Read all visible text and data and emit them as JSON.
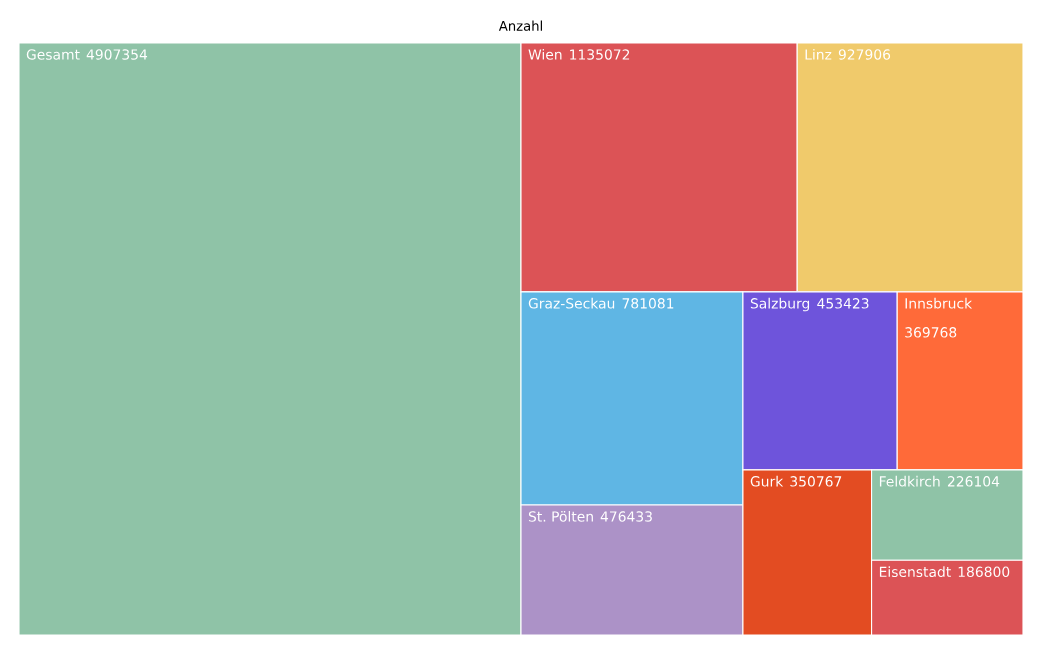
{
  "chart_data": {
    "type": "other",
    "title": "Anzahl",
    "categories": [
      "Gesamt",
      "Wien",
      "Linz",
      "Graz-Seckau",
      "St. Pölten",
      "Salzburg",
      "Innsbruck",
      "Gurk",
      "Feldkirch",
      "Eisenstadt"
    ],
    "values": [
      4907354,
      1135072,
      927906,
      781081,
      476433,
      453423,
      369768,
      350767,
      226104,
      186800
    ],
    "colors": [
      "#8fc3a7",
      "#dc5356",
      "#f0ca6b",
      "#5fb6e4",
      "#ac92c7",
      "#6e54db",
      "#ff6a39",
      "#e34c22",
      "#8fc3a7",
      "#dc5356"
    ],
    "data_labels": true
  }
}
